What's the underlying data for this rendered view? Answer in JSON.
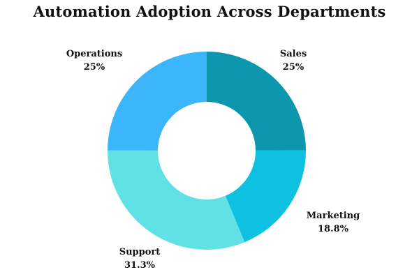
{
  "chart_data": {
    "type": "pie",
    "title": "Automation Adoption Across Departments",
    "donut": true,
    "slices": [
      {
        "label": "Sales",
        "value": 25,
        "value_label": "25%",
        "color": "#0d97ae"
      },
      {
        "label": "Marketing",
        "value": 18.8,
        "value_label": "18.8%",
        "color": "#0fc1e0"
      },
      {
        "label": "Support",
        "value": 31.3,
        "value_label": "31.3%",
        "color": "#5fe1e6"
      },
      {
        "label": "Operations",
        "value": 25,
        "value_label": "25%",
        "color": "#3bb5fb"
      }
    ],
    "start": "12 o'clock",
    "direction": "clockwise",
    "legend": "none"
  }
}
